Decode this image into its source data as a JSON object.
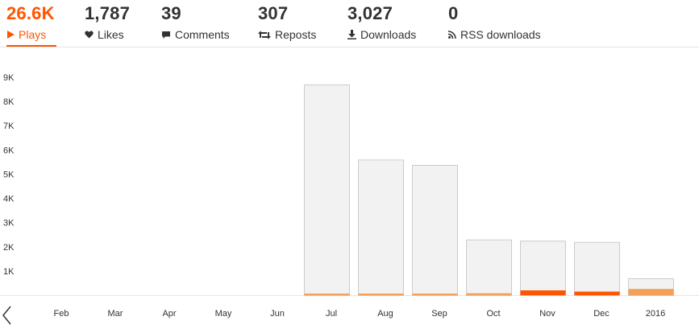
{
  "stats": {
    "plays": {
      "value": "26.6K",
      "label": "Plays",
      "icon": "play-icon"
    },
    "likes": {
      "value": "1,787",
      "label": "Likes",
      "icon": "heart-icon"
    },
    "comments": {
      "value": "39",
      "label": "Comments",
      "icon": "comment-icon"
    },
    "reposts": {
      "value": "307",
      "label": "Reposts",
      "icon": "repost-icon"
    },
    "downloads": {
      "value": "3,027",
      "label": "Downloads",
      "icon": "download-icon"
    },
    "rss": {
      "value": "0",
      "label": "RSS downloads",
      "icon": "rss-icon"
    }
  },
  "colors": {
    "accent": "#ff5500",
    "bar_fill": "#f2f2f2",
    "bar_stroke": "#cccccc",
    "bar_secondary": "#f5a05a",
    "text": "#333333"
  },
  "chart_data": {
    "type": "bar",
    "categories": [
      "Feb",
      "Mar",
      "Apr",
      "May",
      "Jun",
      "Jul",
      "Aug",
      "Sep",
      "Oct",
      "Nov",
      "Dec",
      "2016"
    ],
    "series": [
      {
        "values": [
          0,
          0,
          0,
          0,
          0,
          8700,
          5600,
          5380,
          2300,
          2250,
          2200,
          700
        ]
      },
      {
        "values": [
          0,
          0,
          0,
          0,
          0,
          40,
          60,
          60,
          80,
          200,
          150,
          260
        ]
      }
    ],
    "yticks": [
      "1K",
      "2K",
      "3K",
      "4K",
      "5K",
      "6K",
      "7K",
      "8K",
      "9K"
    ],
    "ylim": [
      0,
      9000
    ],
    "legend": "none",
    "grid": false
  }
}
